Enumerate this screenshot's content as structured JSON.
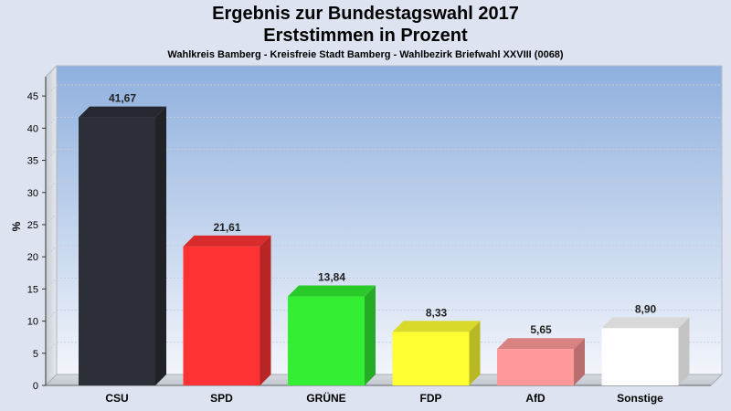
{
  "chart_data": {
    "type": "bar",
    "title": "Ergebnis zur Bundestagswahl 2017",
    "subtitle": "Erststimmen in Prozent",
    "caption": "Wahlkreis Bamberg - Kreisfreie Stadt Bamberg - Wahlbezirk Briefwahl XXVIII (0068)",
    "ylabel": "%",
    "ylim": [
      0,
      48
    ],
    "yticks": [
      0,
      5,
      10,
      15,
      20,
      25,
      30,
      35,
      40,
      45
    ],
    "categories": [
      "CSU",
      "SPD",
      "GRÜNE",
      "FDP",
      "AfD",
      "Sonstige"
    ],
    "values": [
      41.67,
      21.61,
      13.84,
      8.33,
      5.65,
      8.9
    ],
    "value_labels": [
      "41,67",
      "21,61",
      "13,84",
      "8,33",
      "5,65",
      "8,90"
    ],
    "colors": [
      "#2c2f38",
      "#ff3333",
      "#33ee33",
      "#ffff33",
      "#ff9999",
      "#ffffff"
    ],
    "grid": true
  }
}
